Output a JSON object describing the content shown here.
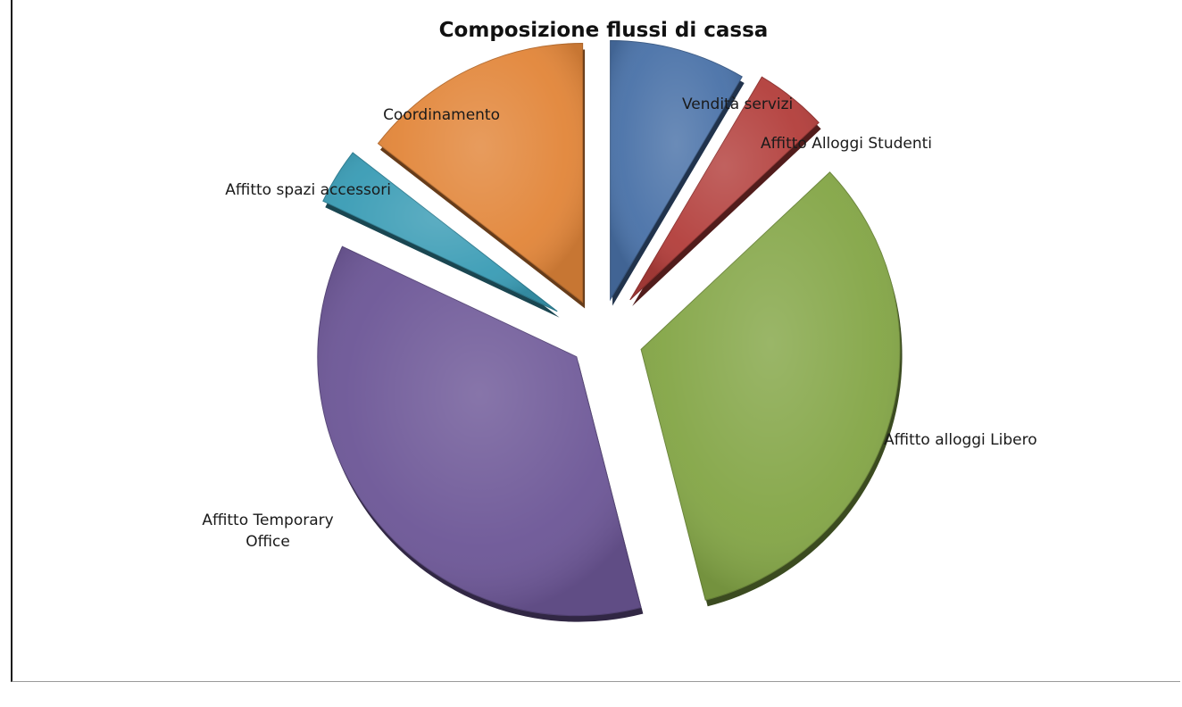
{
  "chart_data": {
    "type": "pie",
    "title": "Composizione flussi di cassa",
    "exploded": true,
    "style": "3d-shaded",
    "slices": [
      {
        "label": [
          "Vendità servizi"
        ],
        "value": 8.5,
        "color": "#4a72a8"
      },
      {
        "label": [
          "Affitto Alloggi Studenti"
        ],
        "value": 4.5,
        "color": "#b33f3c"
      },
      {
        "label": [
          "Affitto alloggi Libero"
        ],
        "value": 33,
        "color": "#84a647"
      },
      {
        "label": [
          "Affitto Temporary",
          "Office"
        ],
        "value": 36,
        "color": "#6d5797"
      },
      {
        "label": [
          "Affitto spazi accessori"
        ],
        "value": 3.5,
        "color": "#3a9cb5"
      },
      {
        "label": [
          "Coordinamento"
        ],
        "value": 14.5,
        "color": "#e2863a"
      }
    ]
  }
}
